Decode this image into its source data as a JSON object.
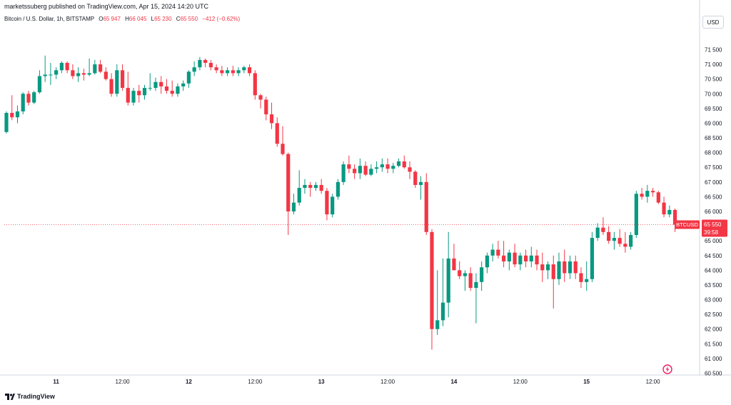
{
  "header": {
    "published_by": "marketssuberg published on TradingView.com, Apr 15, 2024 14:20 UTC"
  },
  "legend": {
    "symbol_text": "Bitcoin / U.S. Dollar, 1h, BITSTAMP",
    "open_label": "O",
    "open_value": "65 947",
    "high_label": "H",
    "high_value": "66 045",
    "low_label": "L",
    "low_value": "65 230",
    "close_label": "C",
    "close_value": "65 550",
    "change": "−412 (−0.62%)"
  },
  "currency_button": "USD",
  "price_tag": {
    "symbol": "BTCUSD",
    "price": "65 550",
    "countdown": "39:58"
  },
  "footer": {
    "logo_text": "TradingView"
  },
  "colors": {
    "up": "#089981",
    "down": "#f23645",
    "grid": "#f0f3fa",
    "text": "#131722"
  },
  "icons": {
    "lightning": "lightning-icon",
    "logo": "tradingview-logo-icon"
  },
  "chart_data": {
    "type": "candlestick",
    "title": "Bitcoin / U.S. Dollar, 1h, BITSTAMP",
    "ylim": [
      60300,
      71800
    ],
    "y_ticks": [
      60500,
      61000,
      61500,
      62000,
      62500,
      63000,
      63500,
      64000,
      64500,
      65000,
      65500,
      66000,
      66500,
      67000,
      67500,
      68000,
      68500,
      69000,
      69500,
      70000,
      70500,
      71000,
      71500
    ],
    "y_tick_labels": [
      "60 500",
      "61 000",
      "61 500",
      "62 000",
      "62 500",
      "63 000",
      "63 500",
      "64 000",
      "64 500",
      "65 000",
      "65 500",
      "66 000",
      "66 500",
      "67 000",
      "67 500",
      "68 000",
      "68 500",
      "69 000",
      "69 500",
      "70 000",
      "70 500",
      "71 000",
      "71 500"
    ],
    "x_ticks": [
      {
        "candle": 9,
        "label": "11"
      },
      {
        "candle": 21,
        "label": "12:00"
      },
      {
        "candle": 33,
        "label": "12"
      },
      {
        "candle": 45,
        "label": "12:00"
      },
      {
        "candle": 57,
        "label": "13"
      },
      {
        "candle": 69,
        "label": "12:00"
      },
      {
        "candle": 81,
        "label": "14"
      },
      {
        "candle": 93,
        "label": "12:00"
      },
      {
        "candle": 105,
        "label": "15"
      },
      {
        "candle": 117,
        "label": "12:00"
      }
    ],
    "x_ticks_bold": [
      "11",
      "12",
      "13",
      "14",
      "15"
    ],
    "last_price": 65550,
    "candles": [
      [
        68700,
        69400,
        68650,
        69350
      ],
      [
        69350,
        69950,
        69100,
        69200
      ],
      [
        69200,
        69600,
        69000,
        69400
      ],
      [
        69400,
        70050,
        69300,
        70000
      ],
      [
        70000,
        70100,
        69600,
        69700
      ],
      [
        69700,
        70100,
        69650,
        70050
      ],
      [
        70050,
        70800,
        70000,
        70600
      ],
      [
        70600,
        71300,
        70400,
        70650
      ],
      [
        70650,
        71050,
        70300,
        70650
      ],
      [
        70650,
        70900,
        70500,
        70800
      ],
      [
        70800,
        71100,
        70700,
        71050
      ],
      [
        71050,
        71100,
        70700,
        70800
      ],
      [
        70800,
        71000,
        70500,
        70600
      ],
      [
        70600,
        70900,
        70400,
        70700
      ],
      [
        70700,
        70850,
        70450,
        70650
      ],
      [
        70650,
        71200,
        70600,
        70700
      ],
      [
        70700,
        71150,
        70650,
        71000
      ],
      [
        71000,
        71150,
        70700,
        70750
      ],
      [
        70750,
        70900,
        70450,
        70500
      ],
      [
        70500,
        70700,
        69900,
        70000
      ],
      [
        70000,
        71000,
        69900,
        70800
      ],
      [
        70800,
        71000,
        70100,
        70200
      ],
      [
        70200,
        70750,
        69600,
        69700
      ],
      [
        69700,
        70200,
        69600,
        70100
      ],
      [
        70100,
        70300,
        69700,
        69950
      ],
      [
        69950,
        70300,
        69800,
        70200
      ],
      [
        70200,
        70700,
        70100,
        70200
      ],
      [
        70200,
        70550,
        70100,
        70400
      ],
      [
        70400,
        70600,
        70000,
        70250
      ],
      [
        70250,
        70500,
        70000,
        70100
      ],
      [
        70100,
        70450,
        69900,
        70000
      ],
      [
        70000,
        70350,
        69900,
        70250
      ],
      [
        70250,
        70450,
        70100,
        70350
      ],
      [
        70350,
        70800,
        70200,
        70750
      ],
      [
        70750,
        71100,
        70600,
        70900
      ],
      [
        70900,
        71250,
        70800,
        71150
      ],
      [
        71150,
        71200,
        70900,
        71050
      ],
      [
        71050,
        71150,
        70800,
        70900
      ],
      [
        70900,
        71000,
        70700,
        70800
      ],
      [
        70800,
        70950,
        70600,
        70700
      ],
      [
        70700,
        70900,
        70600,
        70800
      ],
      [
        70800,
        70950,
        70600,
        70700
      ],
      [
        70700,
        70900,
        70600,
        70800
      ],
      [
        70800,
        70950,
        70700,
        70900
      ],
      [
        70900,
        71000,
        70600,
        70700
      ],
      [
        70700,
        70800,
        69800,
        69950
      ],
      [
        69950,
        70000,
        69500,
        69800
      ],
      [
        69800,
        69900,
        69100,
        69300
      ],
      [
        69300,
        69700,
        68800,
        69000
      ],
      [
        69000,
        69200,
        68200,
        68300
      ],
      [
        68300,
        68900,
        67900,
        67950
      ],
      [
        67950,
        68000,
        65200,
        66000
      ],
      [
        66000,
        66600,
        65900,
        66300
      ],
      [
        66300,
        67400,
        66200,
        66800
      ],
      [
        66800,
        67100,
        66600,
        66900
      ],
      [
        66900,
        67000,
        66500,
        66800
      ],
      [
        66800,
        67000,
        66700,
        66900
      ],
      [
        66900,
        67100,
        66600,
        66700
      ],
      [
        66700,
        66800,
        65700,
        65900
      ],
      [
        65900,
        66600,
        65800,
        66500
      ],
      [
        66500,
        67100,
        66400,
        67000
      ],
      [
        67000,
        67700,
        66900,
        67600
      ],
      [
        67600,
        67900,
        67300,
        67450
      ],
      [
        67450,
        67600,
        67100,
        67300
      ],
      [
        67300,
        67800,
        67100,
        67550
      ],
      [
        67550,
        67700,
        67200,
        67250
      ],
      [
        67250,
        67600,
        67200,
        67450
      ],
      [
        67450,
        67700,
        67300,
        67500
      ],
      [
        67500,
        67800,
        67350,
        67600
      ],
      [
        67600,
        67800,
        67300,
        67450
      ],
      [
        67450,
        67650,
        67300,
        67550
      ],
      [
        67550,
        67800,
        67500,
        67700
      ],
      [
        67700,
        67900,
        67450,
        67500
      ],
      [
        67500,
        67700,
        67100,
        67350
      ],
      [
        67350,
        67400,
        66800,
        66900
      ],
      [
        66900,
        67200,
        66400,
        67000
      ],
      [
        67000,
        67300,
        65200,
        65300
      ],
      [
        65300,
        65400,
        61300,
        62000
      ],
      [
        62000,
        64000,
        61800,
        62300
      ],
      [
        62300,
        64400,
        62100,
        62900
      ],
      [
        62900,
        65300,
        62400,
        64400
      ],
      [
        64400,
        64900,
        64000,
        64000
      ],
      [
        64000,
        64300,
        63700,
        63800
      ],
      [
        63800,
        64000,
        63300,
        63900
      ],
      [
        63900,
        64100,
        63300,
        63400
      ],
      [
        63400,
        63900,
        62200,
        63600
      ],
      [
        63600,
        64300,
        63300,
        64100
      ],
      [
        64100,
        64600,
        63900,
        64500
      ],
      [
        64500,
        64900,
        64300,
        64700
      ],
      [
        64700,
        65000,
        64400,
        64500
      ],
      [
        64500,
        65000,
        64100,
        64300
      ],
      [
        64300,
        64700,
        64000,
        64600
      ],
      [
        64600,
        64900,
        64100,
        64200
      ],
      [
        64200,
        64600,
        64000,
        64500
      ],
      [
        64500,
        64700,
        64100,
        64300
      ],
      [
        64300,
        64800,
        64100,
        64500
      ],
      [
        64500,
        64700,
        64000,
        64200
      ],
      [
        64200,
        64600,
        63600,
        64000
      ],
      [
        64000,
        64300,
        63700,
        64200
      ],
      [
        64200,
        64500,
        62700,
        63700
      ],
      [
        63700,
        64600,
        63500,
        64300
      ],
      [
        64300,
        64700,
        63600,
        63900
      ],
      [
        63900,
        64500,
        63700,
        64300
      ],
      [
        64300,
        64500,
        63700,
        63900
      ],
      [
        63900,
        64100,
        63400,
        63600
      ],
      [
        63600,
        64300,
        63300,
        63700
      ],
      [
        63700,
        65300,
        63600,
        65100
      ],
      [
        65100,
        65600,
        65000,
        65450
      ],
      [
        65450,
        65800,
        65200,
        65300
      ],
      [
        65300,
        65500,
        64900,
        65000
      ],
      [
        65000,
        65300,
        64700,
        65100
      ],
      [
        65100,
        65400,
        64800,
        64900
      ],
      [
        64900,
        65300,
        64600,
        64800
      ],
      [
        64800,
        65300,
        64700,
        65200
      ],
      [
        65200,
        66700,
        65100,
        66600
      ],
      [
        66600,
        66800,
        66400,
        66500
      ],
      [
        66500,
        66900,
        66300,
        66700
      ],
      [
        66700,
        66800,
        66500,
        66650
      ],
      [
        66650,
        66700,
        66250,
        66300
      ],
      [
        66300,
        66500,
        65800,
        65900
      ],
      [
        65900,
        66200,
        65800,
        66050
      ],
      [
        66050,
        66100,
        65300,
        65550
      ]
    ]
  }
}
